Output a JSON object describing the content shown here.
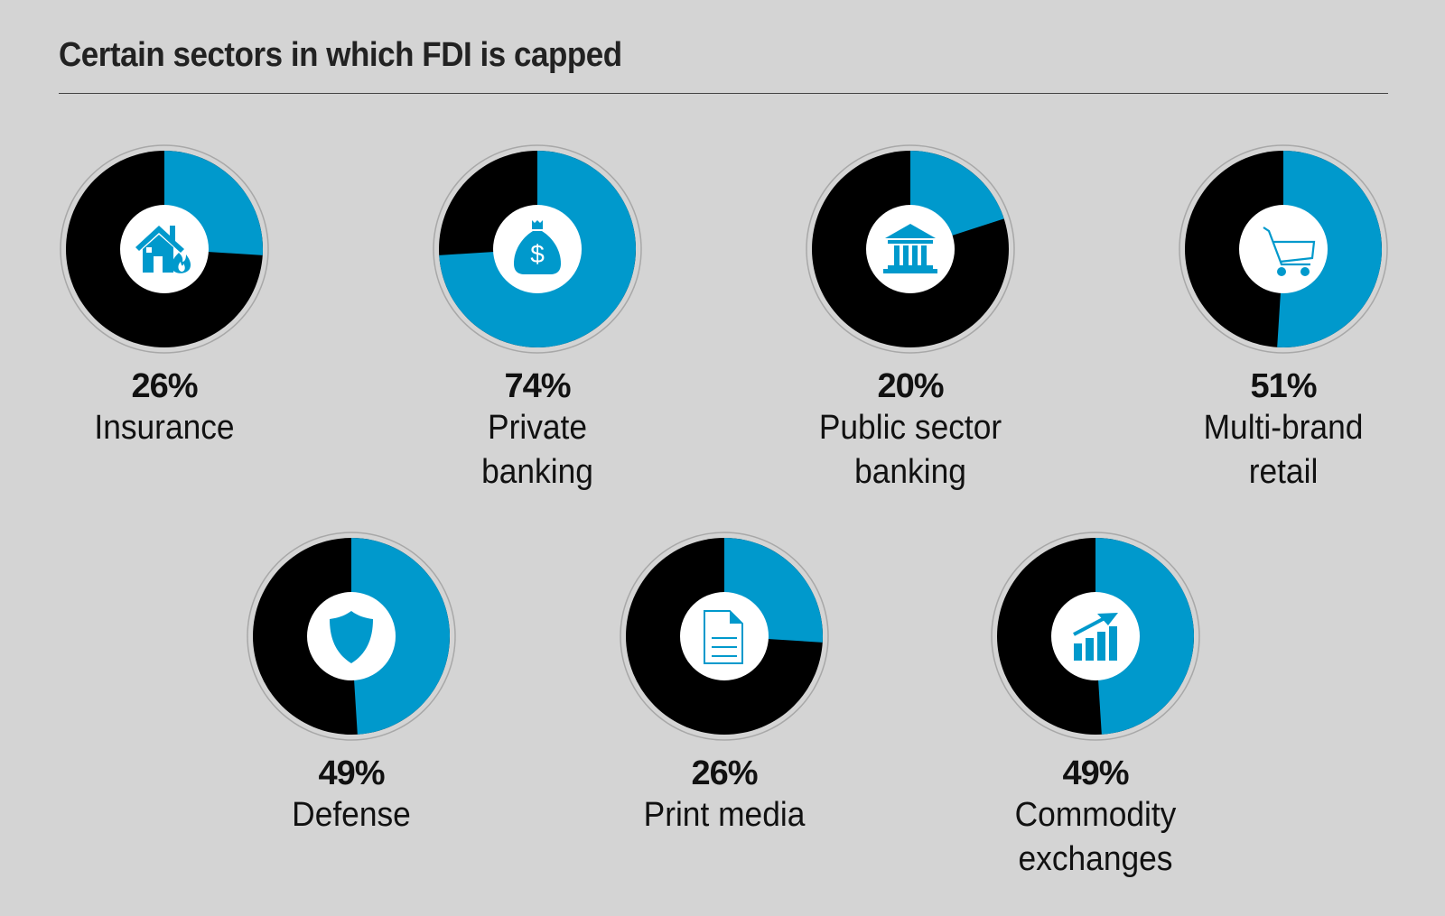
{
  "title": "Certain sectors in which FDI is capped",
  "colors": {
    "cap": "#0099cc",
    "rest": "#000000",
    "ring": "#a8a8a8",
    "background": "#d4d4d4",
    "hub": "#ffffff"
  },
  "chart_data": {
    "type": "pie",
    "title": "Certain sectors in which FDI is capped",
    "unit": "%",
    "categories": [
      "Insurance",
      "Private banking",
      "Public sector banking",
      "Multi-brand retail",
      "Defense",
      "Print media",
      "Commodity exchanges"
    ],
    "values": [
      26,
      74,
      20,
      51,
      49,
      26,
      49
    ],
    "items": [
      {
        "label": "Insurance",
        "lines": [
          "Insurance"
        ],
        "value": 26,
        "pct_label": "26%",
        "icon": "house-fire-icon"
      },
      {
        "label": "Private banking",
        "lines": [
          "Private",
          "banking"
        ],
        "value": 74,
        "pct_label": "74%",
        "icon": "money-bag-icon"
      },
      {
        "label": "Public sector banking",
        "lines": [
          "Public sector",
          "banking"
        ],
        "value": 20,
        "pct_label": "20%",
        "icon": "bank-building-icon"
      },
      {
        "label": "Multi-brand retail",
        "lines": [
          "Multi-brand",
          "retail"
        ],
        "value": 51,
        "pct_label": "51%",
        "icon": "shopping-cart-icon"
      },
      {
        "label": "Defense",
        "lines": [
          "Defense"
        ],
        "value": 49,
        "pct_label": "49%",
        "icon": "shield-icon"
      },
      {
        "label": "Print media",
        "lines": [
          "Print media"
        ],
        "value": 26,
        "pct_label": "26%",
        "icon": "document-icon"
      },
      {
        "label": "Commodity exchanges",
        "lines": [
          "Commodity",
          "exchanges"
        ],
        "value": 49,
        "pct_label": "49%",
        "icon": "growth-chart-icon"
      }
    ],
    "legend": "none",
    "grid": false
  }
}
